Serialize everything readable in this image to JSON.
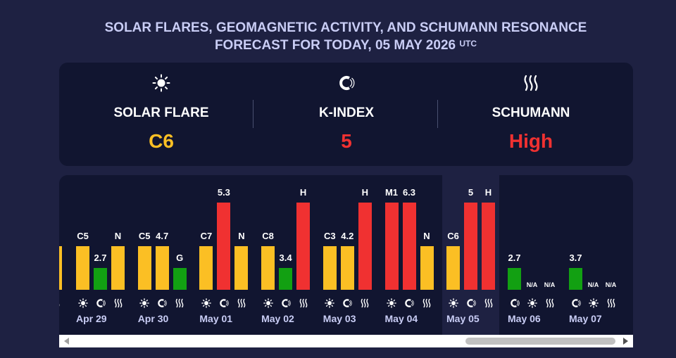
{
  "header": {
    "title_line1": "SOLAR FLARES, GEOMAGNETIC ACTIVITY, AND SCHUMANN RESONANCE",
    "title_line2": "FORECAST FOR TODAY, 05 MAY 2026",
    "title_sup": "UTC"
  },
  "summary": [
    {
      "label": "SOLAR FLARE",
      "value": "C6",
      "icon": "sun-icon",
      "color": "#fbbf24"
    },
    {
      "label": "K-INDEX",
      "value": "5",
      "icon": "magnet-icon",
      "color": "#f03131"
    },
    {
      "label": "SCHUMANN",
      "value": "High",
      "icon": "waves-icon",
      "color": "#f03131"
    }
  ],
  "colors": {
    "yellow": "#fbbf24",
    "red": "#f03131",
    "green": "#12a012"
  },
  "chart_data": {
    "type": "bar",
    "days": [
      {
        "date": "",
        "order": [
          "waves"
        ],
        "bars": [
          {
            "kind": "waves",
            "label": "",
            "level": 0.5,
            "color": "#fbbf24"
          }
        ]
      },
      {
        "date": "Apr 29",
        "order": [
          "sun",
          "magnet",
          "waves"
        ],
        "bars": [
          {
            "kind": "sun",
            "label": "C5",
            "level": 0.5,
            "color": "#fbbf24"
          },
          {
            "kind": "magnet",
            "label": "2.7",
            "level": 0.25,
            "color": "#12a012"
          },
          {
            "kind": "waves",
            "label": "N",
            "level": 0.5,
            "color": "#fbbf24"
          }
        ]
      },
      {
        "date": "Apr 30",
        "order": [
          "sun",
          "magnet",
          "waves"
        ],
        "bars": [
          {
            "kind": "sun",
            "label": "C5",
            "level": 0.5,
            "color": "#fbbf24"
          },
          {
            "kind": "magnet",
            "label": "4.7",
            "level": 0.5,
            "color": "#fbbf24"
          },
          {
            "kind": "waves",
            "label": "G",
            "level": 0.25,
            "color": "#12a012"
          }
        ]
      },
      {
        "date": "May 01",
        "order": [
          "sun",
          "magnet",
          "waves"
        ],
        "bars": [
          {
            "kind": "sun",
            "label": "C7",
            "level": 0.5,
            "color": "#fbbf24"
          },
          {
            "kind": "magnet",
            "label": "5.3",
            "level": 1.0,
            "color": "#f03131"
          },
          {
            "kind": "waves",
            "label": "N",
            "level": 0.5,
            "color": "#fbbf24"
          }
        ]
      },
      {
        "date": "May 02",
        "order": [
          "sun",
          "magnet",
          "waves"
        ],
        "bars": [
          {
            "kind": "sun",
            "label": "C8",
            "level": 0.5,
            "color": "#fbbf24"
          },
          {
            "kind": "magnet",
            "label": "3.4",
            "level": 0.25,
            "color": "#12a012"
          },
          {
            "kind": "waves",
            "label": "H",
            "level": 1.0,
            "color": "#f03131"
          }
        ]
      },
      {
        "date": "May 03",
        "order": [
          "sun",
          "magnet",
          "waves"
        ],
        "bars": [
          {
            "kind": "sun",
            "label": "C3",
            "level": 0.5,
            "color": "#fbbf24"
          },
          {
            "kind": "magnet",
            "label": "4.2",
            "level": 0.5,
            "color": "#fbbf24"
          },
          {
            "kind": "waves",
            "label": "H",
            "level": 1.0,
            "color": "#f03131"
          }
        ]
      },
      {
        "date": "May 04",
        "order": [
          "sun",
          "magnet",
          "waves"
        ],
        "bars": [
          {
            "kind": "sun",
            "label": "M1",
            "level": 1.0,
            "color": "#f03131"
          },
          {
            "kind": "magnet",
            "label": "6.3",
            "level": 1.0,
            "color": "#f03131"
          },
          {
            "kind": "waves",
            "label": "N",
            "level": 0.5,
            "color": "#fbbf24"
          }
        ]
      },
      {
        "date": "May 05",
        "today": true,
        "order": [
          "sun",
          "magnet",
          "waves"
        ],
        "bars": [
          {
            "kind": "sun",
            "label": "C6",
            "level": 0.5,
            "color": "#fbbf24"
          },
          {
            "kind": "magnet",
            "label": "5",
            "level": 1.0,
            "color": "#f03131"
          },
          {
            "kind": "waves",
            "label": "H",
            "level": 1.0,
            "color": "#f03131"
          }
        ]
      },
      {
        "date": "May 06",
        "order": [
          "magnet",
          "sun",
          "waves"
        ],
        "bars": [
          {
            "kind": "magnet",
            "label": "2.7",
            "level": 0.25,
            "color": "#12a012"
          },
          {
            "kind": "sun",
            "label": "N/A",
            "level": 0,
            "color": "#fbbf24"
          },
          {
            "kind": "waves",
            "label": "N/A",
            "level": 0,
            "color": "#fbbf24"
          }
        ]
      },
      {
        "date": "May 07",
        "order": [
          "magnet",
          "sun",
          "waves"
        ],
        "bars": [
          {
            "kind": "magnet",
            "label": "3.7",
            "level": 0.25,
            "color": "#12a012"
          },
          {
            "kind": "sun",
            "label": "N/A",
            "level": 0,
            "color": "#fbbf24"
          },
          {
            "kind": "waves",
            "label": "N/A",
            "level": 0,
            "color": "#fbbf24"
          }
        ]
      }
    ]
  }
}
